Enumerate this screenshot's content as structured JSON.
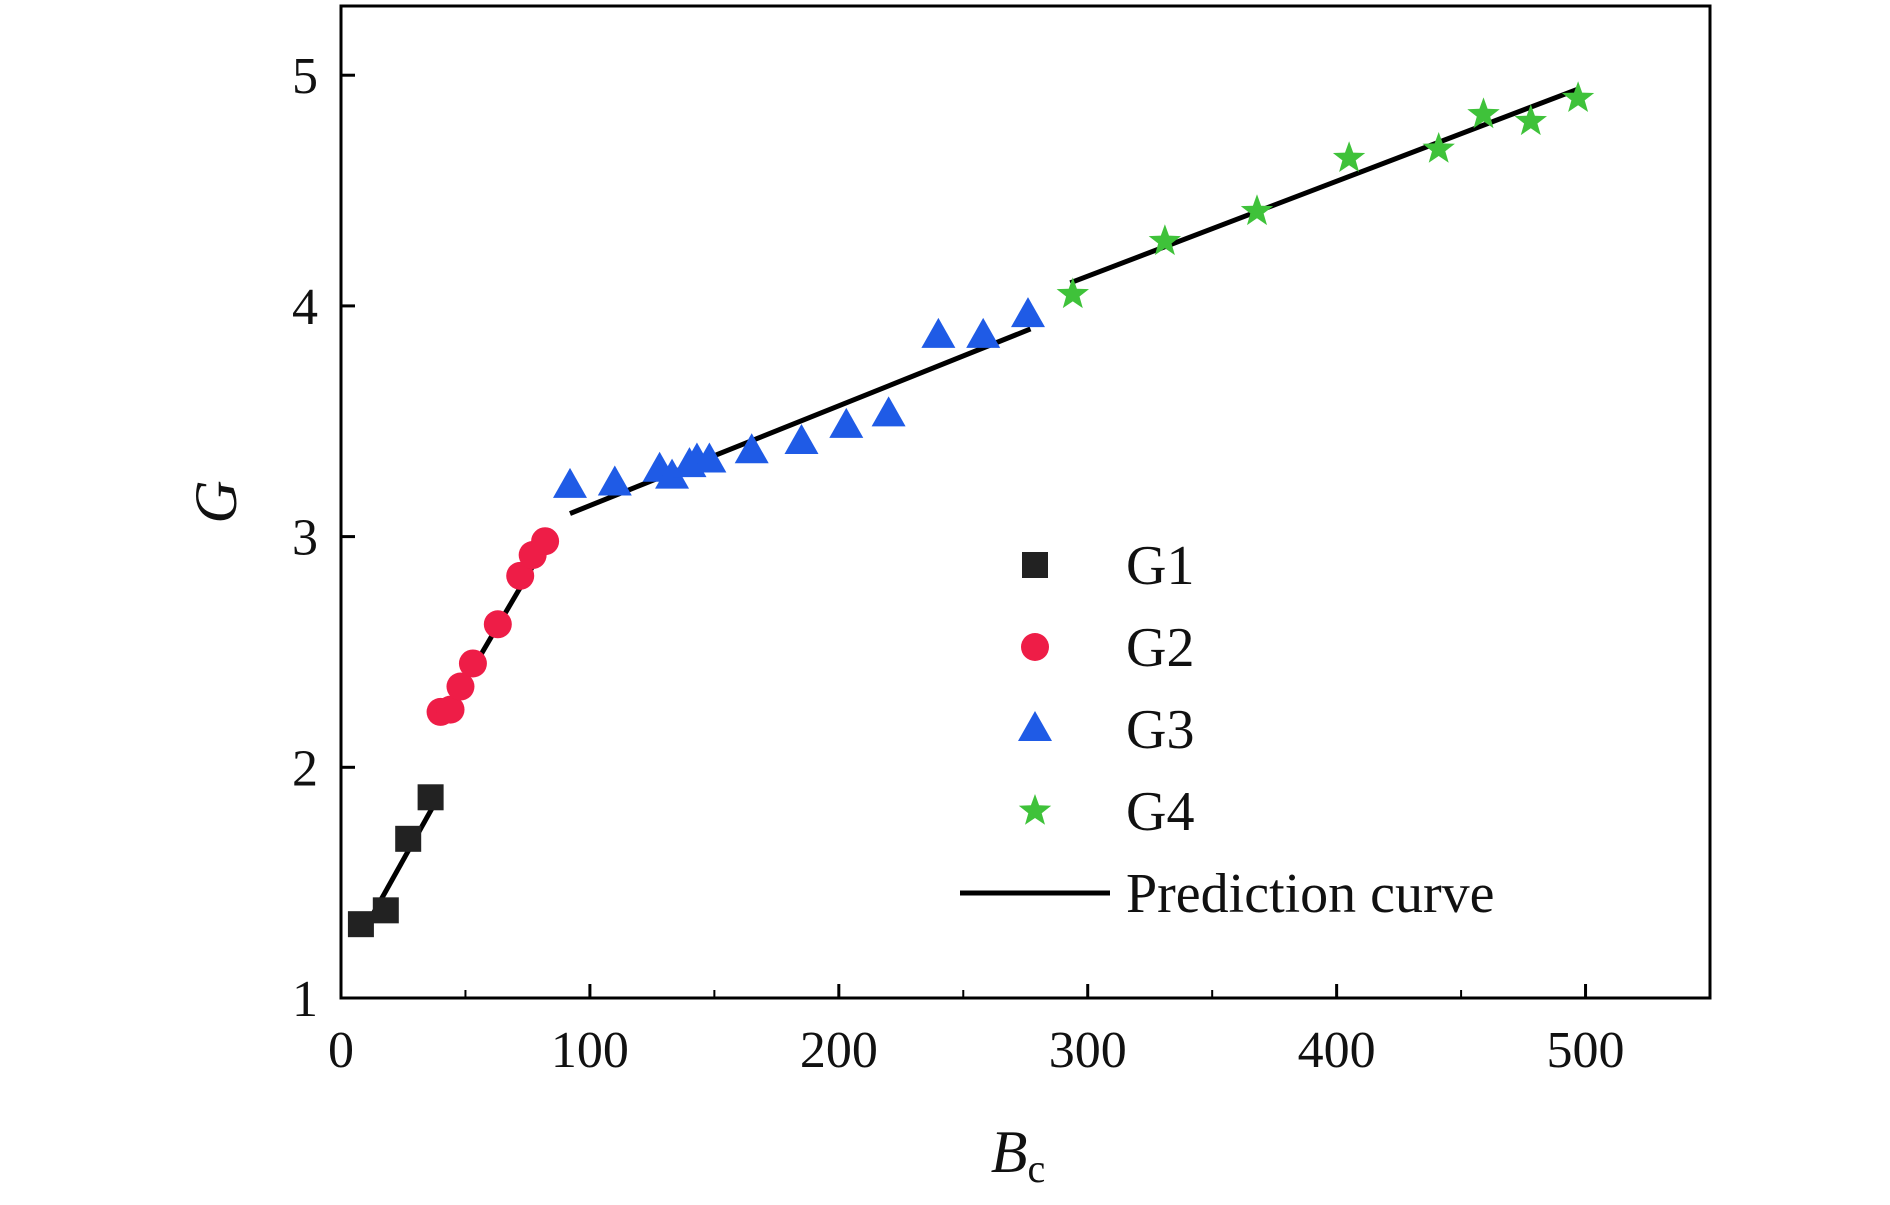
{
  "chart_data": {
    "type": "scatter",
    "xlabel": {
      "main": "B",
      "sub": "c"
    },
    "ylabel": "G",
    "xlim": [
      0,
      550
    ],
    "ylim": [
      1,
      5.3
    ],
    "xticks": [
      0,
      100,
      200,
      300,
      400,
      500
    ],
    "yticks": [
      1,
      2,
      3,
      4,
      5
    ],
    "x_tick_labels": [
      "0",
      "100",
      "200",
      "300",
      "400",
      "500"
    ],
    "y_tick_labels": [
      "1",
      "2",
      "3",
      "4",
      "5"
    ],
    "legend_position": "right-center",
    "grid": false,
    "series": [
      {
        "name": "G1",
        "marker": "square",
        "color": "#222222",
        "points": [
          [
            8,
            1.32
          ],
          [
            18,
            1.38
          ],
          [
            27,
            1.69
          ],
          [
            36,
            1.87
          ]
        ]
      },
      {
        "name": "G2",
        "marker": "circle",
        "color": "#ee1d47",
        "points": [
          [
            40,
            2.24
          ],
          [
            44,
            2.25
          ],
          [
            48,
            2.35
          ],
          [
            53,
            2.45
          ],
          [
            63,
            2.62
          ],
          [
            72,
            2.83
          ],
          [
            77,
            2.92
          ],
          [
            82,
            2.98
          ]
        ]
      },
      {
        "name": "G3",
        "marker": "triangle",
        "color": "#1f5be6",
        "points": [
          [
            92,
            3.22
          ],
          [
            110,
            3.23
          ],
          [
            128,
            3.29
          ],
          [
            133,
            3.26
          ],
          [
            140,
            3.31
          ],
          [
            143,
            3.33
          ],
          [
            148,
            3.33
          ],
          [
            165,
            3.37
          ],
          [
            185,
            3.41
          ],
          [
            203,
            3.48
          ],
          [
            220,
            3.53
          ],
          [
            240,
            3.87
          ],
          [
            258,
            3.87
          ],
          [
            276,
            3.96
          ]
        ]
      },
      {
        "name": "G4",
        "marker": "star",
        "color": "#3fc23a",
        "points": [
          [
            294,
            4.05
          ],
          [
            331,
            4.28
          ],
          [
            368,
            4.41
          ],
          [
            405,
            4.64
          ],
          [
            441,
            4.68
          ],
          [
            459,
            4.83
          ],
          [
            478,
            4.8
          ],
          [
            497,
            4.9
          ]
        ]
      }
    ],
    "prediction_curve": {
      "name": "Prediction curve",
      "color": "#000000",
      "segments": [
        [
          [
            8,
            1.27
          ],
          [
            38,
            1.85
          ]
        ],
        [
          [
            40,
            2.19
          ],
          [
            84,
            3.0
          ]
        ],
        [
          [
            92,
            3.1
          ],
          [
            277,
            3.9
          ]
        ],
        [
          [
            293,
            4.1
          ],
          [
            497,
            4.94
          ]
        ]
      ]
    }
  }
}
